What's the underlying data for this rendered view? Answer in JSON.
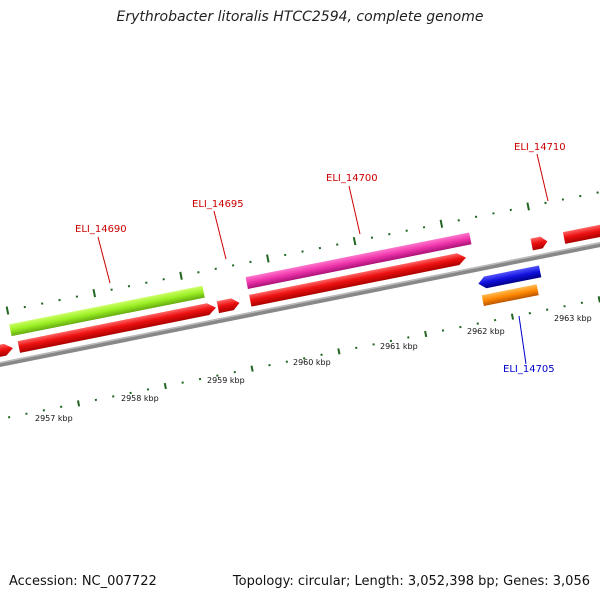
{
  "title": "Erythrobacter litoralis HTCC2594, complete genome",
  "footer": {
    "accession": "Accession: NC_007722",
    "summary": "Topology: circular; Length: 3,052,398 bp; Genes: 3,056"
  },
  "ticks": [
    {
      "label": "2957 kbp"
    },
    {
      "label": "2958 kbp"
    },
    {
      "label": "2959 kbp"
    },
    {
      "label": "2960 kbp"
    },
    {
      "label": "2961 kbp"
    },
    {
      "label": "2962 kbp"
    },
    {
      "label": "2963 kbp"
    }
  ],
  "genes": [
    {
      "name": "ELI_14690",
      "color": "#cc0000"
    },
    {
      "name": "ELI_14695",
      "color": "#cc0000"
    },
    {
      "name": "ELI_14700",
      "color": "#cc0000"
    },
    {
      "name": "ELI_14705",
      "color": "#0000cc"
    },
    {
      "name": "ELI_14710",
      "color": "#cc0000"
    }
  ],
  "colors": {
    "cds": "#ee1111",
    "lime_feature": "#99ee22",
    "magenta_feature": "#ee33aa",
    "blue_feature": "#1111dd",
    "orange_feature": "#ff8800",
    "backbone": "#888888",
    "tick": "#226622"
  }
}
